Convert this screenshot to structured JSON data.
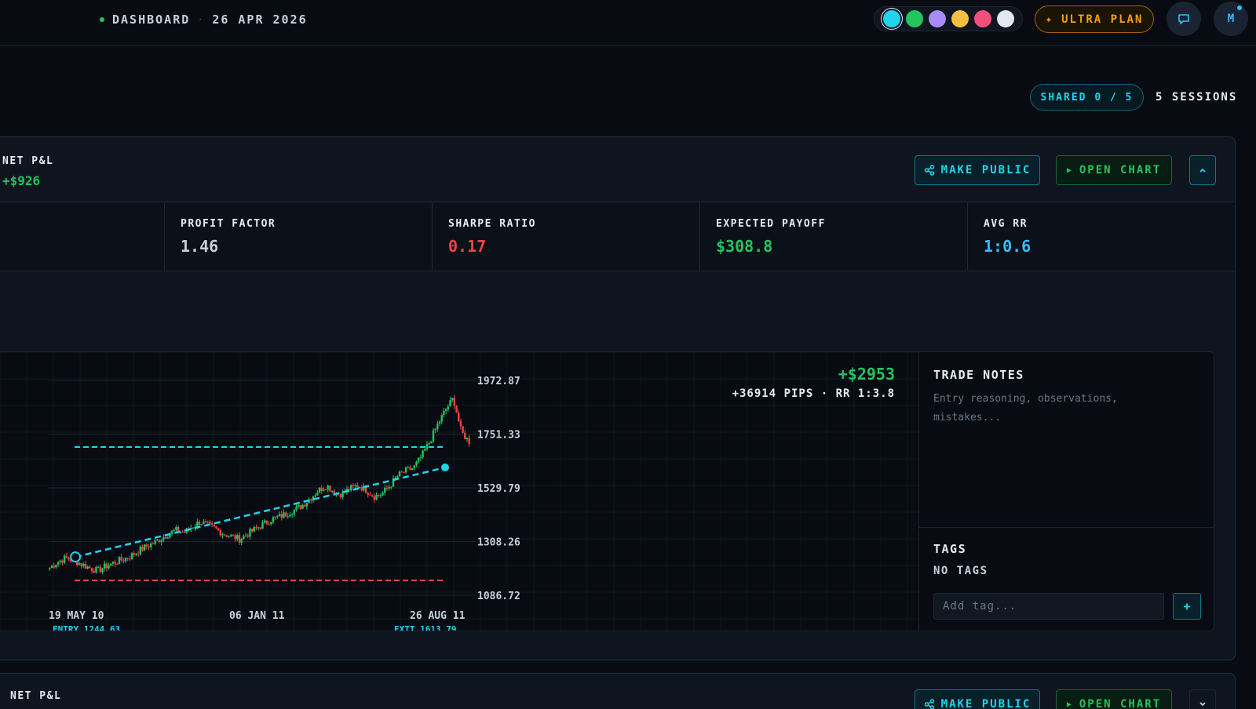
{
  "header": {
    "section": "DASHBOARD",
    "date": "26 APR 2026",
    "theme_colors": [
      "#22d3ee",
      "#22c55e",
      "#a78bfa",
      "#f5c042",
      "#f0507a",
      "#e2e8f0"
    ],
    "selected_theme": 0,
    "plan_label": "ULTRA PLAN",
    "avatar_initial": "M"
  },
  "summary": {
    "shared_label": "SHARED 0 / 5",
    "sessions_label": "5 SESSIONS"
  },
  "session": {
    "net_pl_label": "NET P&L",
    "net_pl_value": "+$926",
    "make_public_label": "MAKE PUBLIC",
    "open_chart_label": "OPEN CHART",
    "stats": [
      {
        "label": "PROFIT FACTOR",
        "value": "1.46",
        "color": "#c8d1dc"
      },
      {
        "label": "SHARPE RATIO",
        "value": "0.17",
        "color": "#ef4444"
      },
      {
        "label": "EXPECTED PAYOFF",
        "value": "$308.8",
        "color": "#22c55e"
      },
      {
        "label": "AVG RR",
        "value": "1:0.6",
        "color": "#38bdf8"
      }
    ],
    "trade": {
      "pl": "+$2953",
      "pips_rr": "+36914 PIPS · RR 1:3.8",
      "notes_label": "TRADE NOTES",
      "notes_placeholder": "Entry reasoning, observations, mistakes...",
      "tags_label": "TAGS",
      "tags_empty": "NO TAGS",
      "tag_input_placeholder": "Add tag...",
      "add_tag_label": "+"
    }
  },
  "session2": {
    "net_pl_label": "NET P&L",
    "make_public_label": "MAKE PUBLIC",
    "open_chart_label": "OPEN CHART"
  },
  "chart_data": {
    "type": "candlestick",
    "y_ticks": [
      "1972.87",
      "1751.33",
      "1529.79",
      "1308.26",
      "1086.72"
    ],
    "ylim": [
      1086.72,
      1972.87
    ],
    "x_ticks": [
      "19 MAY 10",
      "06 JAN 11",
      "26 AUG 11"
    ],
    "entry_label": "ENTRY 1244.63",
    "exit_label": "EXIT 1613.79",
    "entry_price": 1244.63,
    "exit_price": 1613.79,
    "take_profit_level": 1698,
    "stop_loss_level": 1148,
    "series_close": [
      1200,
      1225,
      1240,
      1232,
      1215,
      1200,
      1188,
      1205,
      1220,
      1232,
      1244,
      1265,
      1285,
      1300,
      1320,
      1340,
      1355,
      1345,
      1370,
      1390,
      1375,
      1360,
      1340,
      1330,
      1318,
      1340,
      1360,
      1380,
      1400,
      1410,
      1425,
      1440,
      1460,
      1490,
      1520,
      1540,
      1510,
      1505,
      1528,
      1540,
      1520,
      1495,
      1505,
      1540,
      1580,
      1600,
      1613,
      1660,
      1720,
      1790,
      1850,
      1900,
      1760,
      1720
    ],
    "colors": {
      "up": "#22c55e",
      "down": "#ef4444",
      "accent": "#22d3ee"
    }
  }
}
